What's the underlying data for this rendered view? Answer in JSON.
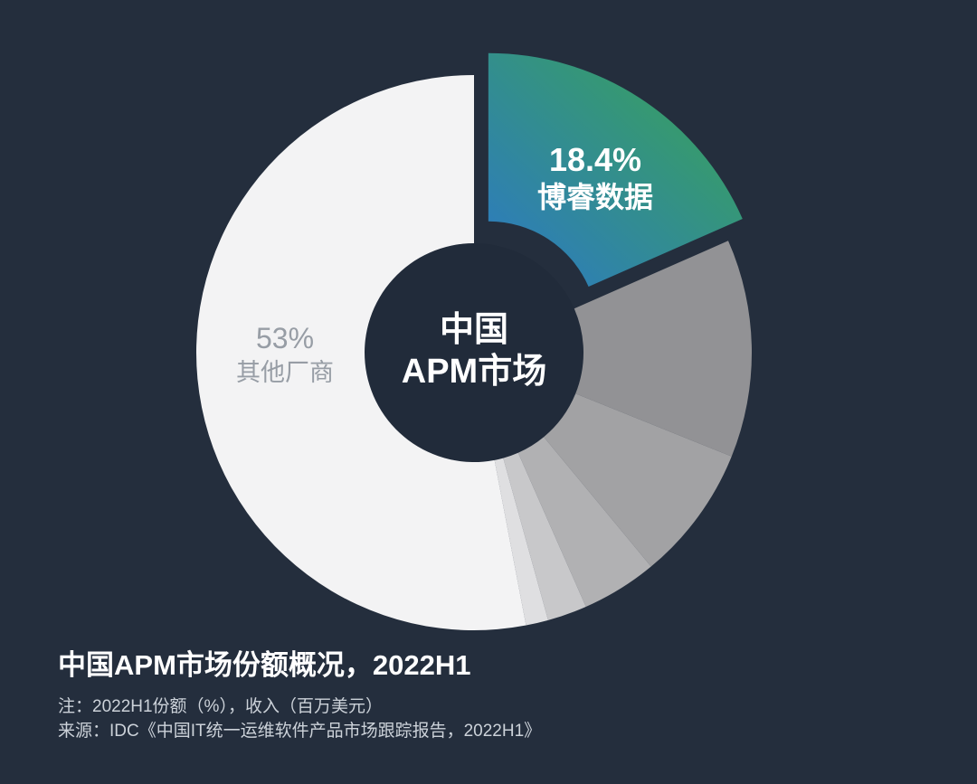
{
  "page": {
    "background_color": "#242e3d",
    "hole_color": "#212b3a"
  },
  "chart_data": {
    "type": "pie",
    "subtype": "donut-exploded-highlight",
    "title": "中国APM市场份额概况，2022H1",
    "notes": {
      "note": "注：2022H1份额（%），收入（百万美元）",
      "source": "来源：IDC《中国IT统一运维软件产品市场跟踪报告，2022H1》"
    },
    "unit": "percent of market share",
    "slices": [
      {
        "id": "bonree",
        "value": 18.4,
        "label": "博睿数据",
        "gradient": true,
        "color_start": "#2c78c6",
        "color_end": "#3aa64f",
        "exploded": true
      },
      {
        "id": "segment-2",
        "value": 12.7,
        "label": "",
        "color": "#929295"
      },
      {
        "id": "segment-3",
        "value": 7.9,
        "label": "",
        "color": "#a2a2a4"
      },
      {
        "id": "segment-4",
        "value": 4.4,
        "label": "",
        "color": "#b1b1b3"
      },
      {
        "id": "segment-5",
        "value": 2.3,
        "label": "",
        "color": "#c8c8ca"
      },
      {
        "id": "segment-6",
        "value": 1.3,
        "label": "",
        "color": "#dfdfe1"
      },
      {
        "id": "others",
        "value": 53.0,
        "label": "其他厂商",
        "color": "#f3f3f4"
      }
    ],
    "labels": {
      "bonree": {
        "value": "18.4%",
        "name": "博睿数据"
      },
      "others": {
        "value": "53%",
        "name": "其他厂商"
      },
      "center": {
        "line1": "中国",
        "line2": "APM市场"
      }
    },
    "legend": "none",
    "start_angle_deg": 0,
    "direction": "clockwise"
  }
}
